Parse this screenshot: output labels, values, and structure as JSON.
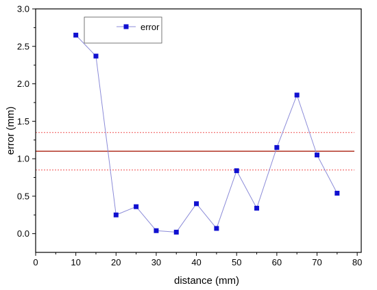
{
  "chart_data": {
    "type": "line",
    "xlabel": "distance (mm)",
    "ylabel": "error (mm)",
    "xlim": [
      0,
      81
    ],
    "ylim": [
      -0.25,
      3.0
    ],
    "x_ticks": [
      0,
      10,
      20,
      30,
      40,
      50,
      60,
      70,
      80
    ],
    "y_ticks": [
      0.0,
      0.5,
      1.0,
      1.5,
      2.0,
      2.5,
      3.0
    ],
    "y_tick_labels": [
      "0.0",
      "0.5",
      "1.0",
      "1.5",
      "2.0",
      "2.5",
      "3.0"
    ],
    "grid": false,
    "legend_position": "top-left",
    "series": [
      {
        "name": "error",
        "marker": "square",
        "color": "#1010d0",
        "line_color": "#8b8bd8",
        "x": [
          10,
          15,
          20,
          25,
          30,
          35,
          40,
          45,
          50,
          55,
          60,
          65,
          70,
          75
        ],
        "y": [
          2.65,
          2.37,
          0.25,
          0.36,
          0.04,
          0.02,
          0.4,
          0.07,
          0.84,
          0.34,
          1.15,
          1.85,
          1.05,
          0.54
        ]
      }
    ],
    "reference_lines": [
      {
        "y": 1.1,
        "style": "solid",
        "color": "#b03020"
      },
      {
        "y": 1.35,
        "style": "dotted",
        "color": "#f05050"
      },
      {
        "y": 0.85,
        "style": "dotted",
        "color": "#f05050"
      }
    ]
  }
}
